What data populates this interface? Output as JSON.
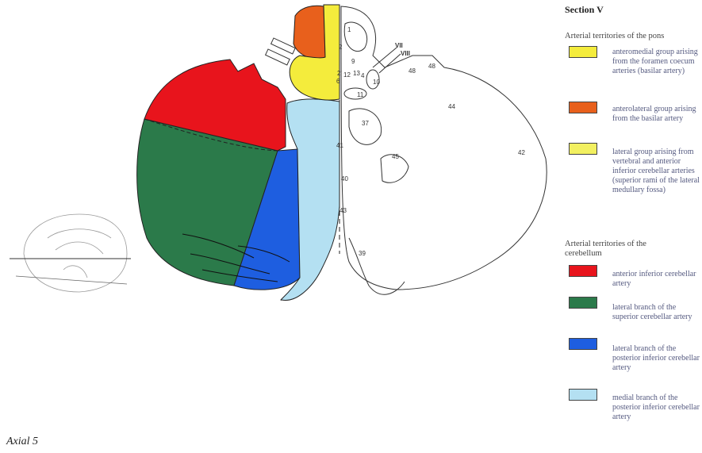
{
  "section_title": "Section V",
  "caption": "Axial  5",
  "legend": {
    "pons": {
      "heading": "Arterial territories of the pons",
      "items": [
        {
          "color": "#f4ec3c",
          "label": "anteromedial group arising from the foramen coecum arteries (basilar artery)"
        },
        {
          "color": "#e8601c",
          "label": "anterolateral group arising from the basilar artery"
        },
        {
          "color": "#f2f060",
          "label": "lateral group arising from vertebral and anterior inferior cerebellar arteries (superior rami of the lateral medullary fossa)"
        }
      ]
    },
    "cerebellum": {
      "heading": "Arterial territories of the cerebellum",
      "items": [
        {
          "color": "#e8141c",
          "label": "anterior inferior cerebellar artery"
        },
        {
          "color": "#2b7a4a",
          "label": "lateral branch of the superior cerebellar artery"
        },
        {
          "color": "#1e5ee0",
          "label": "lateral branch of the posterior inferior cerebellar artery"
        },
        {
          "color": "#b4e0f2",
          "label": "medial branch of the posterior inferior cerebellar artery"
        }
      ]
    }
  },
  "structure_labels": [
    "1",
    "2",
    "9",
    "2'",
    "6",
    "12",
    "13",
    "4",
    "10",
    "11",
    "VII",
    "VIII",
    "48",
    "48",
    "44",
    "37",
    "41",
    "45",
    "42",
    "40",
    "43",
    "39"
  ]
}
